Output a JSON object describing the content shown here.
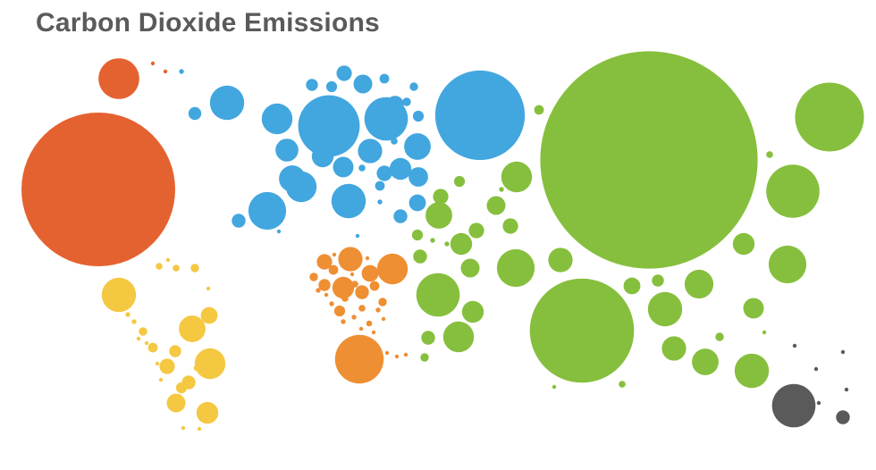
{
  "title": "Carbon Dioxide Emissions",
  "colors": {
    "north_america": "#e4622f",
    "south_america": "#f5c842",
    "europe": "#42a6df",
    "africa": "#ee8f33",
    "asia": "#86bf3d",
    "oceania": "#5a5a5a",
    "background": "#ffffff"
  },
  "chart_data": {
    "type": "bubble",
    "title": "Carbon Dioxide Emissions",
    "series": [
      {
        "region": "north_america",
        "values": [
          100,
          7,
          0.05,
          0.05,
          0.05
        ]
      },
      {
        "region": "south_america",
        "values": [
          5,
          4,
          3,
          2,
          1.5,
          1.2,
          1,
          0.8,
          0.6,
          0.5,
          0.4,
          0.3,
          0.3,
          0.2,
          0.2,
          0.15,
          0.1,
          0.1,
          0.1,
          0.05,
          0.05,
          0.05,
          0.05,
          0.05,
          0.05,
          0.05,
          0.05
        ]
      },
      {
        "region": "europe",
        "values": [
          34,
          16,
          8,
          6,
          5,
          5,
          4,
          4,
          3,
          3,
          2.5,
          2.2,
          2,
          2,
          1.8,
          1.6,
          1.5,
          1.3,
          1.2,
          1,
          1,
          0.8,
          0.8,
          0.7,
          0.6,
          0.5,
          0.5,
          0.4,
          0.4,
          0.3,
          0.3,
          0.2,
          0.2,
          0.1,
          0.1,
          0.05,
          0.05
        ]
      },
      {
        "region": "africa",
        "values": [
          10,
          4,
          2.5,
          2,
          1.2,
          1,
          0.8,
          0.6,
          0.5,
          0.4,
          0.4,
          0.3,
          0.3,
          0.2,
          0.2,
          0.2,
          0.15,
          0.1,
          0.1,
          0.1,
          0.1,
          0.1,
          0.05,
          0.05,
          0.05,
          0.05,
          0.05,
          0.05,
          0.05,
          0.05,
          0.05,
          0.05,
          0.05
        ]
      },
      {
        "region": "asia",
        "values": [
          200,
          46,
          20,
          12,
          8,
          6,
          6,
          5,
          5,
          4,
          4,
          3.5,
          3,
          3,
          2.5,
          2.5,
          2,
          2,
          2,
          1.8,
          1.5,
          1.5,
          1.2,
          1,
          1,
          1,
          0.8,
          0.8,
          0.6,
          0.5,
          0.5,
          0.4,
          0.3,
          0.3,
          0.2,
          0.2,
          0.1,
          0.1,
          0.1,
          0.05,
          0.05
        ]
      },
      {
        "region": "oceania",
        "values": [
          8,
          0.8,
          0.05,
          0.05,
          0.05,
          0.05,
          0.05
        ]
      }
    ]
  }
}
